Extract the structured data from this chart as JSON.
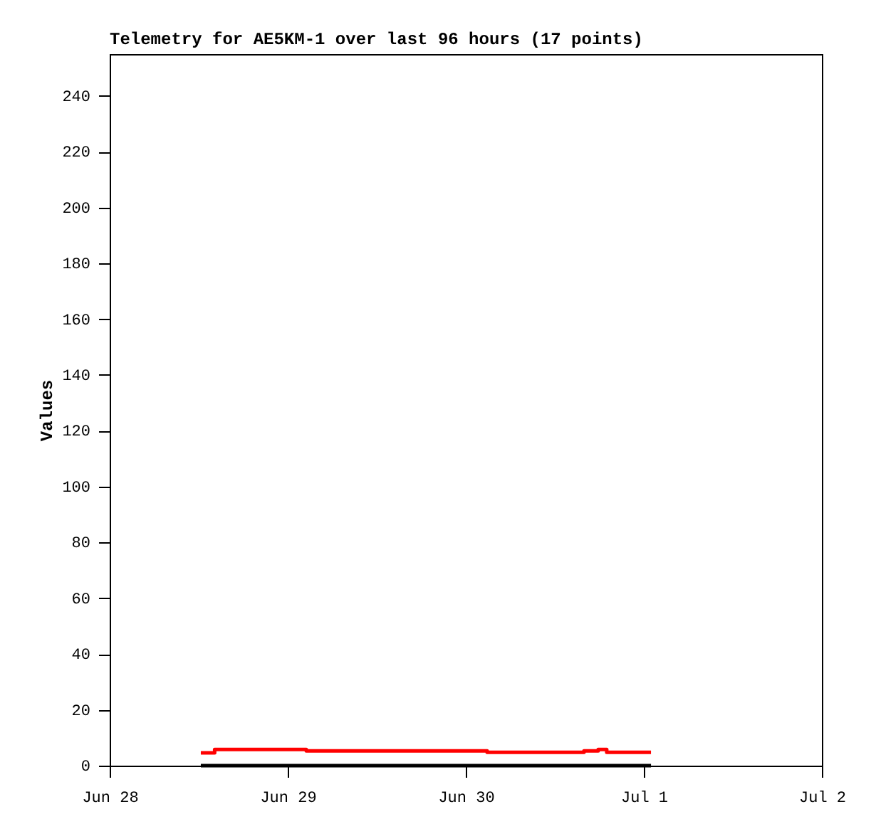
{
  "chart_data": {
    "type": "step",
    "title": "Telemetry for AE5KM-1 over last 96 hours (17 points)",
    "ylabel": "Values",
    "xlim": [
      "--06-28",
      "--07-02"
    ],
    "xticks": [
      {
        "value": "--06-28",
        "label": "Jun 28"
      },
      {
        "value": "--06-29",
        "label": "Jun 29"
      },
      {
        "value": "--06-30",
        "label": "Jun 30"
      },
      {
        "value": "--07-01",
        "label": "Jul 1"
      },
      {
        "value": "--07-02",
        "label": "Jul 2"
      }
    ],
    "ylim": [
      0,
      255
    ],
    "yticks": [
      0,
      20,
      40,
      60,
      80,
      100,
      120,
      140,
      160,
      180,
      200,
      220,
      240
    ],
    "series": [
      {
        "color": "#ff0000",
        "x": [
          "--06-28T12:17",
          "--06-28T14:09",
          "--06-29T02:30",
          "--06-30T02:53",
          "--06-30T15:56",
          "--06-30T17:51",
          "--06-30T19:00",
          "--07-01T00:58"
        ],
        "values": [
          4.6,
          5.8,
          5.3,
          4.8,
          5.3,
          5.8,
          4.8,
          4.8
        ]
      },
      {
        "color": "#000000",
        "x": [
          "--06-28T12:17",
          "--07-01T00:58"
        ],
        "values": [
          0,
          0
        ]
      }
    ]
  }
}
